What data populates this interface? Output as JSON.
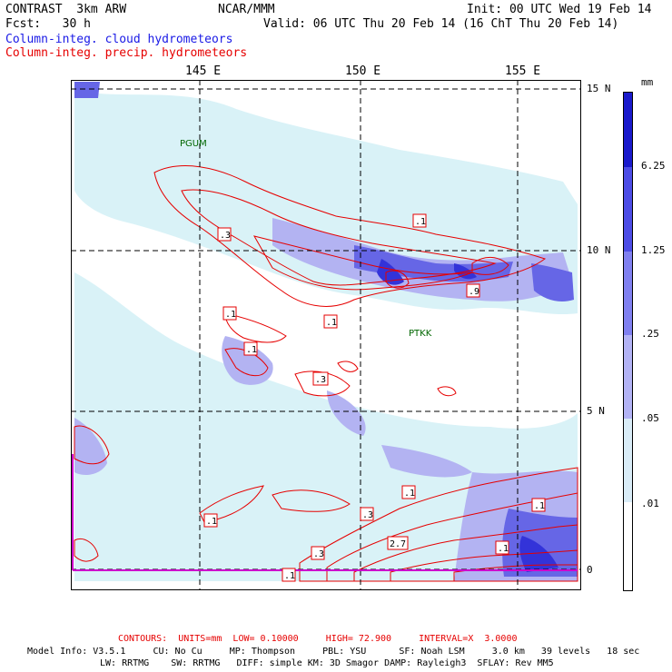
{
  "header": {
    "line1_left": "CONTRAST  3km ARW",
    "line1_center": "NCAR/MMM",
    "line1_right": "Init: 00 UTC Wed 19 Feb 14",
    "line2_left": "Fcst:   30 h",
    "line2_right": "Valid: 06 UTC Thu 20 Feb 14 (16 ChT Thu 20 Feb 14)",
    "field1": "Column-integ. cloud hydrometeors",
    "field2": "Column-integ. precip. hydrometeors"
  },
  "map": {
    "lon_labels": [
      "145 E",
      "150 E",
      "155 E"
    ],
    "lat_labels": [
      "15 N",
      "10 N",
      "5 N",
      "0"
    ],
    "station_labels": [
      "PGUM",
      "PTKK"
    ],
    "contour_labels": [
      ".1",
      ".3",
      ".1",
      ".1",
      ".1",
      ".9",
      ".1",
      ".3",
      ".1",
      ".3",
      ".1",
      ".3",
      ".1",
      "2.7",
      ".1"
    ],
    "colors": {
      "fill_light": "#d9f2f7",
      "fill_mid": "#b3b3f2",
      "fill_dark": "#6666e6",
      "fill_darker": "#3333d9",
      "contour": "#e60000",
      "grid": "#000000",
      "station": "#006600",
      "boundary": "#cc00cc"
    }
  },
  "legend": {
    "unit": "mm",
    "labels": [
      "6.25",
      "1.25",
      ".25",
      ".05",
      ".01"
    ],
    "colors": [
      "#1a1acc",
      "#4d4de6",
      "#8080f0",
      "#b3b3f5",
      "#d9ecf7",
      "#ffffff"
    ]
  },
  "footer": {
    "contours_line": "CONTOURS:  UNITS=mm  LOW= 0.10000     HIGH= 72.900     INTERVAL=X  3.0000",
    "model_line1": "Model Info: V3.5.1     CU: No Cu     MP: Thompson     PBL: YSU      SF: Noah LSM     3.0 km   39 levels   18 sec",
    "model_line2": "LW: RRTMG    SW: RRTMG   DIFF: simple KM: 3D Smagor DAMP: Rayleigh3  SFLAY: Rev MM5"
  }
}
